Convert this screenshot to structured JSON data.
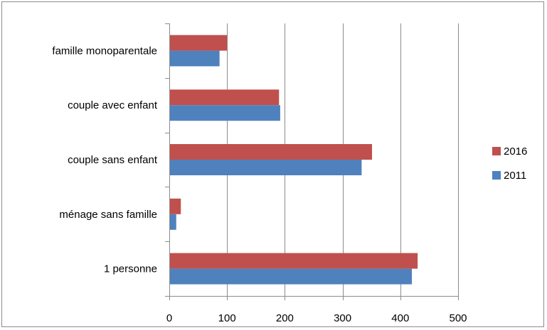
{
  "chart_data": {
    "type": "bar",
    "orientation": "horizontal",
    "categories": [
      "1 personne",
      "ménage sans famille",
      "couple sans enfant",
      "couple avec enfant",
      "famille monoparentale"
    ],
    "series": [
      {
        "name": "2011",
        "color": "#4f81bd",
        "values": [
          420,
          12,
          333,
          192,
          87
        ]
      },
      {
        "name": "2016",
        "color": "#c0504d",
        "values": [
          430,
          20,
          351,
          190,
          100
        ]
      }
    ],
    "xlim": [
      0,
      500
    ],
    "xticks": [
      "0",
      "100",
      "200",
      "300",
      "400",
      "500"
    ],
    "grid": true,
    "legend_position": "right"
  }
}
